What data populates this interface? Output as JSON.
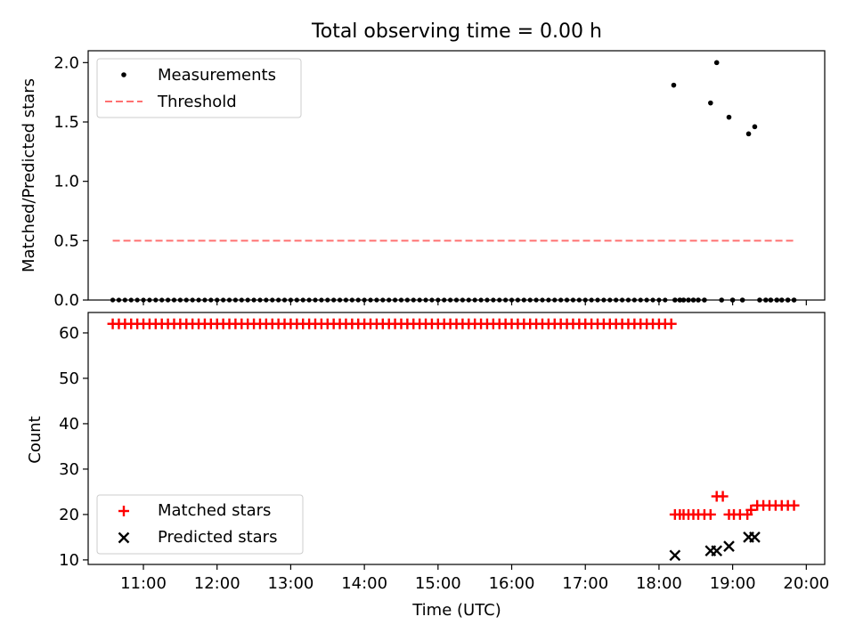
{
  "figure": {
    "title": "Total observing time = 0.00 h",
    "xlabel": "Time (UTC)",
    "xtick_labels": [
      "11:00",
      "12:00",
      "13:00",
      "14:00",
      "15:00",
      "16:00",
      "17:00",
      "18:00",
      "19:00",
      "20:00"
    ]
  },
  "chart_data": [
    {
      "type": "scatter",
      "ylabel": "Matched/Predicted stars",
      "xlim": [
        "10:15",
        "20:15"
      ],
      "ylim": [
        0,
        2.1
      ],
      "yticks": [
        0.0,
        0.5,
        1.0,
        1.5,
        2.0
      ],
      "ytick_labels": [
        "0.0",
        "0.5",
        "1.0",
        "1.5",
        "2.0"
      ],
      "legend_position": "upper-left",
      "legend": [
        "Measurements",
        "Threshold"
      ],
      "threshold": {
        "name": "Threshold",
        "value": 0.5,
        "x_start": "10:35",
        "x_end": "19:50",
        "color": "#ff7070"
      },
      "series": [
        {
          "name": "Measurements",
          "color": "#000000",
          "marker": "dot",
          "zero_points": {
            "x_start": "10:35",
            "x_end": "18:07",
            "step_min": 5
          },
          "points": [
            {
              "x": "18:13",
              "y": 0
            },
            {
              "x": "18:17",
              "y": 0
            },
            {
              "x": "18:20",
              "y": 0
            },
            {
              "x": "18:24",
              "y": 0
            },
            {
              "x": "18:28",
              "y": 0
            },
            {
              "x": "18:32",
              "y": 0
            },
            {
              "x": "18:37",
              "y": 0
            },
            {
              "x": "18:51",
              "y": 0
            },
            {
              "x": "19:00",
              "y": 0
            },
            {
              "x": "19:08",
              "y": 0
            },
            {
              "x": "19:22",
              "y": 0
            },
            {
              "x": "19:27",
              "y": 0
            },
            {
              "x": "19:31",
              "y": 0
            },
            {
              "x": "19:36",
              "y": 0
            },
            {
              "x": "19:40",
              "y": 0
            },
            {
              "x": "19:45",
              "y": 0
            },
            {
              "x": "19:50",
              "y": 0
            },
            {
              "x": "18:12",
              "y": 1.81
            },
            {
              "x": "18:42",
              "y": 1.66
            },
            {
              "x": "18:47",
              "y": 2.0
            },
            {
              "x": "18:57",
              "y": 1.54
            },
            {
              "x": "19:13",
              "y": 1.4
            },
            {
              "x": "19:18",
              "y": 1.46
            }
          ]
        }
      ]
    },
    {
      "type": "scatter",
      "ylabel": "Count",
      "xlim": [
        "10:15",
        "20:15"
      ],
      "ylim": [
        9,
        64.5
      ],
      "yticks": [
        10,
        20,
        30,
        40,
        50,
        60
      ],
      "ytick_labels": [
        "10",
        "20",
        "30",
        "40",
        "50",
        "60"
      ],
      "legend_position": "lower-left",
      "legend": [
        "Matched stars",
        "Predicted stars"
      ],
      "series": [
        {
          "name": "Matched stars",
          "color": "#ff0000",
          "marker": "plus",
          "constant_run": {
            "x_start": "10:35",
            "x_end": "18:10",
            "step_min": 5,
            "y": 62
          },
          "points": [
            {
              "x": "18:13",
              "y": 20
            },
            {
              "x": "18:17",
              "y": 20
            },
            {
              "x": "18:20",
              "y": 20
            },
            {
              "x": "18:24",
              "y": 20
            },
            {
              "x": "18:28",
              "y": 20
            },
            {
              "x": "18:32",
              "y": 20
            },
            {
              "x": "18:37",
              "y": 20
            },
            {
              "x": "18:42",
              "y": 20
            },
            {
              "x": "18:47",
              "y": 24
            },
            {
              "x": "18:52",
              "y": 24
            },
            {
              "x": "18:57",
              "y": 20
            },
            {
              "x": "19:01",
              "y": 20
            },
            {
              "x": "19:06",
              "y": 20
            },
            {
              "x": "19:12",
              "y": 20
            },
            {
              "x": "19:15",
              "y": 21
            },
            {
              "x": "19:20",
              "y": 22
            },
            {
              "x": "19:25",
              "y": 22
            },
            {
              "x": "19:30",
              "y": 22
            },
            {
              "x": "19:35",
              "y": 22
            },
            {
              "x": "19:40",
              "y": 22
            },
            {
              "x": "19:45",
              "y": 22
            },
            {
              "x": "19:50",
              "y": 22
            }
          ]
        },
        {
          "name": "Predicted stars",
          "color": "#000000",
          "marker": "x",
          "points": [
            {
              "x": "18:13",
              "y": 11
            },
            {
              "x": "18:42",
              "y": 12
            },
            {
              "x": "18:47",
              "y": 12
            },
            {
              "x": "18:57",
              "y": 13
            },
            {
              "x": "19:13",
              "y": 15
            },
            {
              "x": "19:18",
              "y": 15
            }
          ]
        }
      ]
    }
  ]
}
